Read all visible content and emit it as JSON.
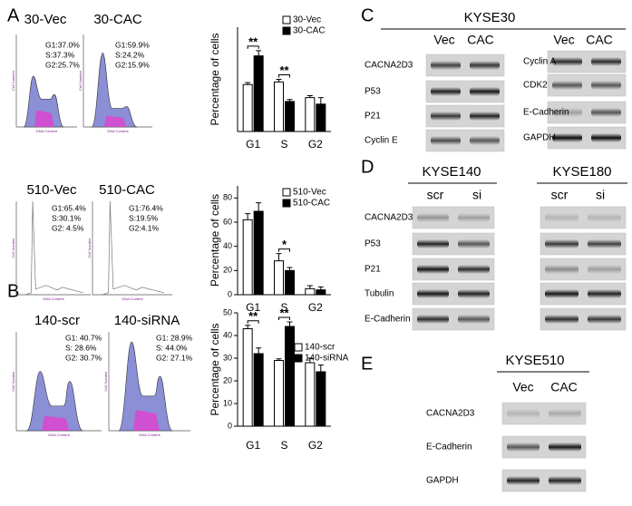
{
  "panel_labels": [
    "A",
    "B",
    "C",
    "D",
    "E"
  ],
  "flow_axis": {
    "y": "Cell Number",
    "x": "DNA Content"
  },
  "flow": [
    {
      "title": "30-Vec",
      "stats": [
        "G1:37.0%",
        "S:37.3%",
        "G2:25.7%"
      ]
    },
    {
      "title": "30-CAC",
      "stats": [
        "G1:59.9%",
        "S:24.2%",
        "G2:15.9%"
      ]
    },
    {
      "title": "510-Vec",
      "stats": [
        "G1:65.4%",
        "S:30.1%",
        "G2: 4.5%"
      ]
    },
    {
      "title": "510-CAC",
      "stats": [
        "G1:76.4%",
        "S:19.5%",
        "G2:4.1%"
      ]
    },
    {
      "title": "140-scr",
      "stats": [
        "G1: 40.7%",
        "S: 28.6%",
        "G2: 30.7%"
      ]
    },
    {
      "title": "140-siRNA",
      "stats": [
        "G1: 28.9%",
        "S: 44.0%",
        "G2: 27.1%"
      ]
    }
  ],
  "chart_data": [
    {
      "type": "bar",
      "categories": [
        "G1",
        "S",
        "G2"
      ],
      "ylabel": "Percentage of cells",
      "ylim": [
        0,
        80
      ],
      "series": [
        {
          "name": "30-Vec",
          "color": "#ffffff",
          "values": [
            36,
            38,
            26
          ],
          "errors": [
            1.5,
            2,
            1.5
          ]
        },
        {
          "name": "30-CAC",
          "color": "#000000",
          "values": [
            58,
            23,
            21
          ],
          "errors": [
            4,
            1.5,
            5
          ]
        }
      ],
      "annotations": [
        "**",
        "**"
      ]
    },
    {
      "type": "bar",
      "categories": [
        "G1",
        "S",
        "G2"
      ],
      "ylabel": "Percentage of cells",
      "ylim": [
        0,
        90
      ],
      "yticks": [
        0,
        20,
        40,
        60,
        80
      ],
      "series": [
        {
          "name": "510-Vec",
          "color": "#ffffff",
          "values": [
            62,
            28,
            5
          ],
          "errors": [
            5,
            6,
            2.5
          ]
        },
        {
          "name": "510-CAC",
          "color": "#000000",
          "values": [
            69,
            20,
            4
          ],
          "errors": [
            7,
            2.5,
            2.5
          ]
        }
      ],
      "annotations": [
        "*"
      ]
    },
    {
      "type": "bar",
      "categories": [
        "G1",
        "S",
        "G2"
      ],
      "ylabel": "Percentage of cells",
      "ylim": [
        0,
        50
      ],
      "yticks": [
        0,
        10,
        20,
        30,
        40,
        50
      ],
      "series": [
        {
          "name": "140-scr",
          "color": "#ffffff",
          "values": [
            43,
            29,
            28
          ],
          "errors": [
            1.5,
            0.7,
            2
          ]
        },
        {
          "name": "140-siRNA",
          "color": "#000000",
          "values": [
            32,
            44,
            24
          ],
          "errors": [
            2.5,
            2,
            3
          ]
        }
      ],
      "annotations": [
        "**",
        "**"
      ]
    }
  ],
  "blot_c": {
    "title": "KYSE30",
    "groups": [
      {
        "columns": [
          "Vec",
          "CAC"
        ],
        "rows": [
          "CACNA2D3",
          "P53",
          "P21",
          "Cyclin E"
        ]
      },
      {
        "columns": [
          "Vec",
          "CAC"
        ],
        "rows": [
          "Cyclin A",
          "CDK2",
          "E-Cadherin",
          "GAPDH"
        ]
      }
    ]
  },
  "blot_d": {
    "groups": [
      {
        "title": "KYSE140",
        "columns": [
          "scr",
          "si"
        ],
        "rows": [
          "CACNA2D3",
          "P53",
          "P21",
          "Tubulin",
          "E-Cadherin"
        ]
      },
      {
        "title": "KYSE180",
        "columns": [
          "scr",
          "si"
        ]
      }
    ]
  },
  "blot_e": {
    "title": "KYSE510",
    "columns": [
      "Vec",
      "CAC"
    ],
    "rows": [
      "CACNA2D3",
      "E-Cadherin",
      "GAPDH"
    ]
  }
}
